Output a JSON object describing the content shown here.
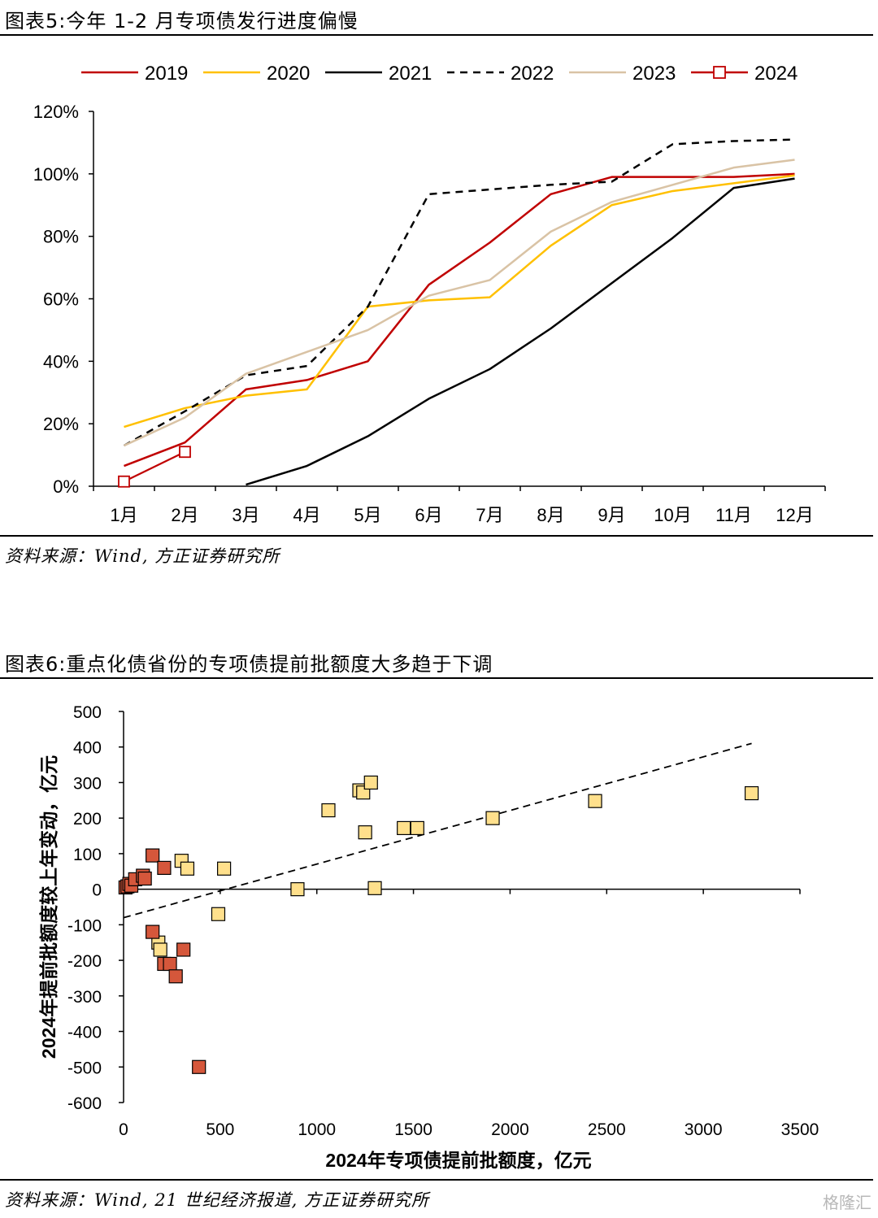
{
  "fig5": {
    "title": "图表5:今年 1-2 月专项债发行进度偏慢",
    "source": "资料来源：Wind, 方正证券研究所"
  },
  "fig6": {
    "title": "图表6:重点化债省份的专项债提前批额度大多趋于下调",
    "source": "资料来源：Wind, 21 世纪经济报道, 方正证券研究所"
  },
  "watermark": "格隆汇",
  "chart_data": [
    {
      "type": "line",
      "categories": [
        "1月",
        "2月",
        "3月",
        "4月",
        "5月",
        "6月",
        "7月",
        "8月",
        "9月",
        "10月",
        "11月",
        "12月"
      ],
      "ylim": [
        0,
        1.2
      ],
      "yticks": [
        "0%",
        "20%",
        "40%",
        "60%",
        "80%",
        "100%",
        "120%"
      ],
      "legend_position": "top",
      "series": [
        {
          "name": "2019",
          "color": "#C00000",
          "style": "solid",
          "values": [
            0.065,
            0.14,
            0.31,
            0.34,
            0.4,
            0.645,
            0.78,
            0.935,
            0.99,
            0.99,
            0.99,
            1.0
          ]
        },
        {
          "name": "2020",
          "color": "#FFC000",
          "style": "solid",
          "values": [
            0.19,
            0.25,
            0.29,
            0.31,
            0.575,
            0.595,
            0.605,
            0.77,
            0.9,
            0.945,
            0.97,
            0.995
          ]
        },
        {
          "name": "2021",
          "color": "#000000",
          "style": "solid",
          "values": [
            null,
            null,
            0.005,
            0.065,
            0.16,
            0.28,
            0.375,
            0.505,
            0.65,
            0.795,
            0.955,
            0.985
          ]
        },
        {
          "name": "2022",
          "color": "#000000",
          "style": "dashed",
          "values": [
            0.13,
            0.24,
            0.355,
            0.385,
            0.575,
            0.935,
            0.95,
            0.965,
            0.975,
            1.095,
            1.105,
            1.11
          ]
        },
        {
          "name": "2023",
          "color": "#D9C3A5",
          "style": "solid",
          "values": [
            0.13,
            0.22,
            0.36,
            0.43,
            0.5,
            0.61,
            0.66,
            0.815,
            0.91,
            0.965,
            1.02,
            1.045
          ]
        },
        {
          "name": "2024",
          "color": "#C00000",
          "style": "marker",
          "values": [
            0.015,
            0.11,
            null,
            null,
            null,
            null,
            null,
            null,
            null,
            null,
            null,
            null
          ]
        }
      ]
    },
    {
      "type": "scatter",
      "xlabel": "2024年专项债提前批额度，亿元",
      "ylabel": "2024年提前批额度较上年变动，亿元",
      "xlim": [
        0,
        3500
      ],
      "ylim": [
        -600,
        500
      ],
      "xticks": [
        0,
        500,
        1000,
        1500,
        2000,
        2500,
        3000,
        3500
      ],
      "yticks": [
        500,
        400,
        300,
        200,
        100,
        0,
        -100,
        -200,
        -300,
        -400,
        -500,
        -600
      ],
      "trendline": {
        "style": "dashed",
        "color": "#000000",
        "x": [
          0,
          3250
        ],
        "y": [
          -80,
          410
        ]
      },
      "series": [
        {
          "color": "#FFE08C",
          "points": [
            [
              300,
              80
            ],
            [
              330,
              58
            ],
            [
              520,
              58
            ],
            [
              490,
              -70
            ],
            [
              180,
              -150
            ],
            [
              190,
              -170
            ],
            [
              900,
              0
            ],
            [
              1060,
              222
            ],
            [
              1220,
              278
            ],
            [
              1240,
              272
            ],
            [
              1280,
              300
            ],
            [
              1250,
              160
            ],
            [
              1300,
              3
            ],
            [
              1450,
              172
            ],
            [
              1520,
              172
            ],
            [
              1910,
              200
            ],
            [
              2440,
              248
            ],
            [
              3250,
              270
            ]
          ]
        },
        {
          "color": "#D5573B",
          "points": [
            [
              10,
              5
            ],
            [
              20,
              8
            ],
            [
              30,
              15
            ],
            [
              40,
              10
            ],
            [
              60,
              28
            ],
            [
              100,
              38
            ],
            [
              110,
              30
            ],
            [
              150,
              95
            ],
            [
              210,
              60
            ],
            [
              150,
              -120
            ],
            [
              210,
              -210
            ],
            [
              240,
              -210
            ],
            [
              270,
              -245
            ],
            [
              310,
              -170
            ],
            [
              390,
              -500
            ]
          ]
        }
      ]
    }
  ]
}
